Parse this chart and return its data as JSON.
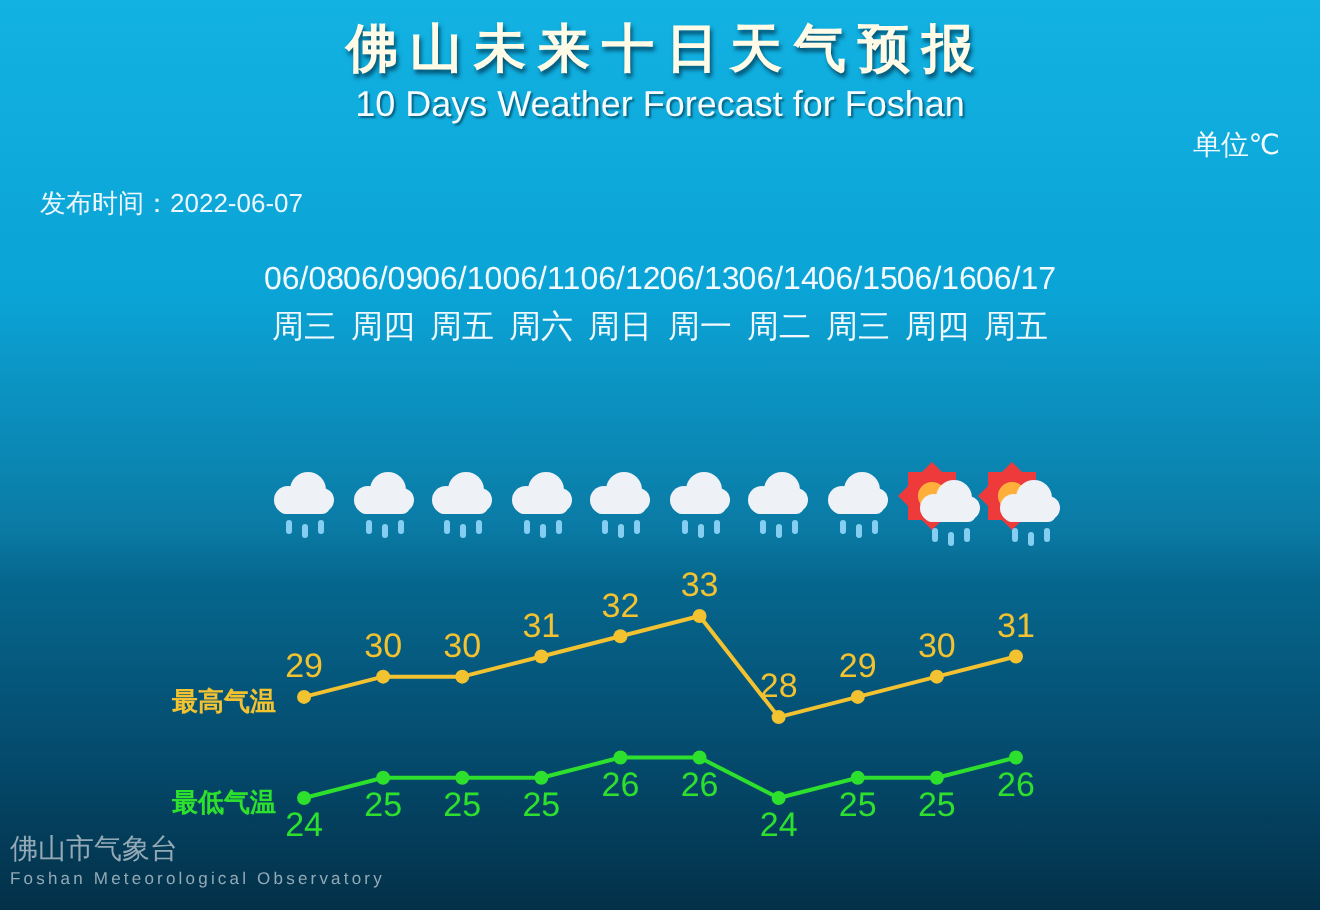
{
  "chart_data": {
    "type": "line",
    "title": "佛山未来十日天气预报",
    "subtitle": "10 Days Weather Forecast for Foshan",
    "categories": [
      "06/08\n周三",
      "06/09\n周四",
      "06/10\n周五",
      "06/11\n周六",
      "06/12\n周日",
      "06/13\n周一",
      "06/14\n周二",
      "06/15\n周三",
      "06/16\n周四",
      "06/17\n周五"
    ],
    "series": [
      {
        "name": "最高气温",
        "color": "#f2c230",
        "values": [
          29,
          30,
          30,
          31,
          32,
          33,
          28,
          29,
          30,
          31
        ]
      },
      {
        "name": "最低气温",
        "color": "#2ee02e",
        "values": [
          24,
          25,
          25,
          25,
          26,
          26,
          24,
          25,
          25,
          26
        ]
      }
    ],
    "annotations": [
      "单位℃",
      "发布时间：2022-06-07",
      "佛山市气象台",
      "Foshan Meteorological Observatory"
    ],
    "data_labels": true,
    "marker": "circle",
    "tick_labels": "x",
    "legend": false
  }
}
